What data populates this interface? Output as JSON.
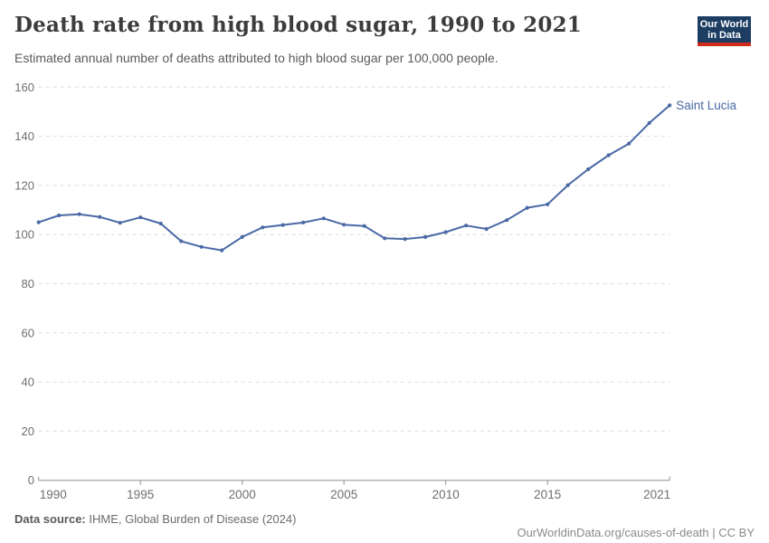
{
  "header": {
    "title": "Death rate from high blood sugar, 1990 to 2021",
    "subtitle": "Estimated annual number of deaths attributed to high blood sugar per 100,000 people."
  },
  "logo": {
    "line1": "Our World",
    "line2": "in Data",
    "bg_color": "#1d3d63",
    "accent_color": "#cf2a1b"
  },
  "footer": {
    "sources_label": "Data source:",
    "sources_text": " IHME, Global Burden of Disease (2024)",
    "link": "OurWorldinData.org/causes-of-death",
    "license": " | CC BY"
  },
  "chart_data": {
    "type": "line",
    "title": "Death rate from high blood sugar, 1990 to 2021",
    "xlabel": "",
    "ylabel": "",
    "xlim": [
      1990,
      2021
    ],
    "ylim": [
      0,
      160
    ],
    "yticks": [
      0,
      20,
      40,
      60,
      80,
      100,
      120,
      140,
      160
    ],
    "xticks": [
      1990,
      1995,
      2000,
      2005,
      2010,
      2015,
      2021
    ],
    "grid": "horizontal-dashed",
    "legend": "end-of-line-label",
    "colors": {
      "gridline": "#dddddd",
      "axis": "#8f8f8f",
      "tick_label": "#6e6e6e"
    },
    "series": [
      {
        "name": "Saint Lucia",
        "color": "#4a69a5",
        "x": [
          1990,
          1991,
          1992,
          1993,
          1994,
          1995,
          1996,
          1997,
          1998,
          1999,
          2000,
          2001,
          2002,
          2003,
          2004,
          2005,
          2006,
          2007,
          2008,
          2009,
          2010,
          2011,
          2012,
          2013,
          2014,
          2015,
          2016,
          2017,
          2018,
          2019,
          2020,
          2021
        ],
        "values": [
          105.0,
          107.8,
          108.3,
          107.2,
          104.8,
          107.0,
          104.5,
          97.3,
          95.0,
          93.6,
          99.0,
          102.9,
          103.9,
          104.9,
          106.6,
          104.0,
          103.5,
          98.5,
          98.2,
          99.0,
          101.0,
          103.7,
          102.3,
          105.9,
          110.9,
          112.3,
          120.1,
          126.6,
          132.3,
          137.0,
          145.4,
          152.6
        ]
      }
    ]
  }
}
